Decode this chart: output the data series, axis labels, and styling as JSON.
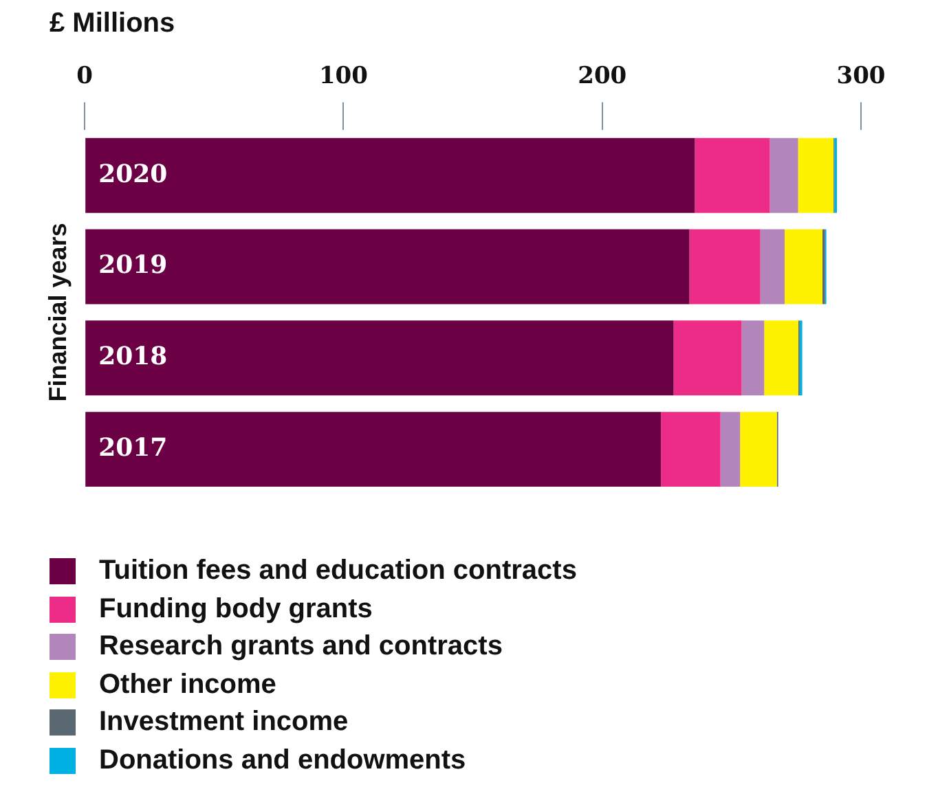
{
  "chart_data": {
    "type": "bar",
    "orientation": "horizontal",
    "stacked": true,
    "xlabel": "£ Millions",
    "ylabel": "Financial years",
    "categories": [
      "2020",
      "2019",
      "2018",
      "2017"
    ],
    "xlim": [
      0,
      300
    ],
    "xticks": [
      0,
      100,
      200,
      300
    ],
    "grid": false,
    "legend": "bottom",
    "series": [
      {
        "name": "Tuition fees and education contracts",
        "color": "#6b0044",
        "values": [
          235.8,
          233.7,
          227.6,
          222.7
        ]
      },
      {
        "name": "Funding body grants",
        "color": "#ec2c86",
        "values": [
          29,
          27.4,
          26.3,
          23
        ]
      },
      {
        "name": "Research grants and contracts",
        "color": "#b286bb",
        "values": [
          10.9,
          9.4,
          8.7,
          7.6
        ]
      },
      {
        "name": "Other income",
        "color": "#fff200",
        "values": [
          13.7,
          14.6,
          13.2,
          14.2
        ]
      },
      {
        "name": "Investment income",
        "color": "#5a6872",
        "values": [
          0.3,
          1,
          0.5,
          0.5
        ]
      },
      {
        "name": "Donations and endowments",
        "color": "#00b2e3",
        "values": [
          1,
          0.5,
          1,
          0
        ]
      }
    ]
  }
}
